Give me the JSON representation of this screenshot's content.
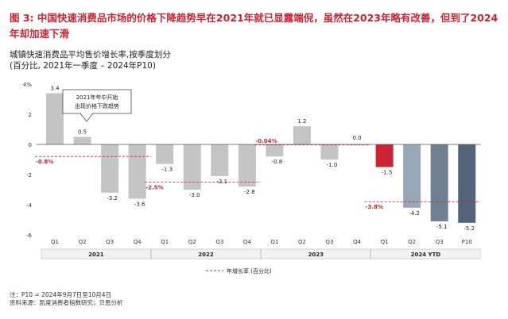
{
  "header": {
    "figure_label": "图 3:",
    "title_line_1": "中国快速消费品市场的价格下降趋势早在2021年就已显露端倪，虽然在2023年略有改善，但到了2024",
    "title_line_2": "年却加速下滑",
    "subtitle_1": "城镇快速消费品平均售价增长率,按季度划分",
    "subtitle_2": "(百分比, 2021年一季度 – 2024年P10)"
  },
  "colors": {
    "title_red": "#cc2233",
    "bar_2021_2023": "#c4c4c4",
    "bar_2024_q1": "#cc2233",
    "bar_2024_q2": "#98a7b8",
    "bar_2024_q3": "#6e7f91",
    "bar_2024_p10": "#53657a",
    "avg_line": "#cc2233"
  },
  "chart_data": {
    "type": "bar",
    "ylim": [
      -6,
      4
    ],
    "yticks": [
      "4%",
      "2",
      "0",
      "-2",
      "-4",
      "-6"
    ],
    "categories": [
      "Q1",
      "Q2",
      "Q3",
      "Q4",
      "Q1",
      "Q2",
      "Q3",
      "Q4",
      "Q1",
      "Q2",
      "Q3",
      "Q4",
      "Q1",
      "Q2",
      "Q3",
      "P10"
    ],
    "groups": [
      {
        "label": "2021",
        "start": 0,
        "end": 3
      },
      {
        "label": "2022",
        "start": 4,
        "end": 7
      },
      {
        "label": "2023",
        "start": 8,
        "end": 11
      },
      {
        "label": "2024 YTD",
        "start": 12,
        "end": 15
      }
    ],
    "values": [
      3.4,
      0.5,
      -3.2,
      -3.6,
      -1.3,
      -3.0,
      -2.1,
      -2.8,
      -0.8,
      1.2,
      -1.0,
      0.0,
      -1.5,
      -4.2,
      -5.1,
      -5.2
    ],
    "value_labels": [
      "3.4",
      "0.5",
      "-3.2",
      "-3.6",
      "-1.3",
      "-3.0",
      "-2.1",
      "-2.8",
      "-0.8",
      "1.2",
      "-1.0",
      "0.0",
      "-1.5",
      "-4.2",
      "-5.1",
      "-5.2"
    ],
    "annual_growth": [
      {
        "year": "2021",
        "value": -0.8,
        "label": "-0.8%"
      },
      {
        "year": "2022",
        "value": -2.5,
        "label": "-2.5%"
      },
      {
        "year": "2023",
        "value": -0.04,
        "label": "-0.04%"
      },
      {
        "year": "2024 YTD",
        "value": -3.8,
        "label": "-3.8%"
      }
    ],
    "legend": "年增长率 (百分比)",
    "annotation": [
      "2021年年中开始",
      "出现价格下跌趋势"
    ]
  },
  "footer": {
    "note": "注：P10 = 2024年9月7日至10月4日",
    "source": "资料来源：凯度消费者指数研究；贝恩分析"
  }
}
